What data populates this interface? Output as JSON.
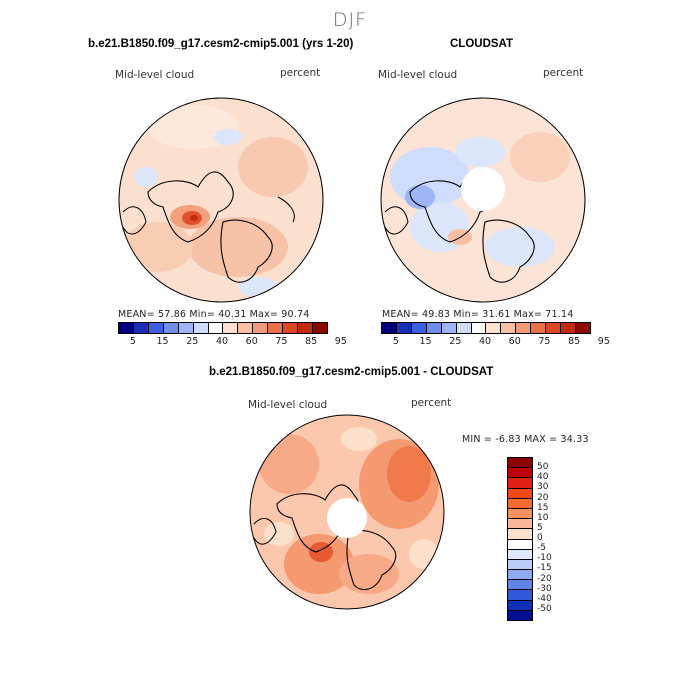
{
  "figure": {
    "title": "DJF"
  },
  "panel1": {
    "title": "b.e21.B1850.f09_g17.cesm2-cmip5.001 (yrs 1-20)",
    "left_label": "Mid-level cloud",
    "right_label": "percent",
    "stats": "MEAN=  57.86   Min=  40.31   Max=  90.74",
    "stats_values": {
      "mean": 57.86,
      "min": 40.31,
      "max": 90.74
    },
    "colorbar_ticks": [
      "5",
      "15",
      "25",
      "40",
      "60",
      "75",
      "85",
      "95"
    ]
  },
  "panel2": {
    "title": "CLOUDSAT",
    "left_label": "Mid-level cloud",
    "right_label": "percent",
    "stats": "MEAN=  49.83   Min=  31.61   Max=  71.14",
    "stats_values": {
      "mean": 49.83,
      "min": 31.61,
      "max": 71.14
    },
    "colorbar_ticks": [
      "5",
      "15",
      "25",
      "40",
      "60",
      "75",
      "85",
      "95"
    ]
  },
  "panel3": {
    "title": "b.e21.B1850.f09_g17.cesm2-cmip5.001 - CLOUDSAT",
    "left_label": "Mid-level cloud",
    "right_label": "percent",
    "minmax": "MIN =  -6.83  MAX =  34.33",
    "minmax_values": {
      "min": -6.83,
      "max": 34.33
    },
    "colorbar_labels": [
      "50",
      "40",
      "30",
      "20",
      "15",
      "10",
      "5",
      "0",
      "-5",
      "-10",
      "-15",
      "-20",
      "-30",
      "-40",
      "-50"
    ]
  },
  "colors": {
    "abs_scale": [
      "#00007f",
      "#1a2fb5",
      "#3a5fe0",
      "#6f8ff0",
      "#9fb6f6",
      "#cfdcfb",
      "#ffffff",
      "#fde2d4",
      "#f9bfa4",
      "#f39a78",
      "#ea7047",
      "#dc4824",
      "#c42a10",
      "#8b0b00"
    ],
    "diff_scale": [
      "#8b0000",
      "#c00000",
      "#e02010",
      "#f04818",
      "#f56a30",
      "#f89060",
      "#fbb898",
      "#fde0cc",
      "#ffffff",
      "#e0eafc",
      "#b8ccf6",
      "#8cabf0",
      "#5f86e6",
      "#3058d8",
      "#1030b8",
      "#001090"
    ],
    "land_outline": "#000000"
  }
}
